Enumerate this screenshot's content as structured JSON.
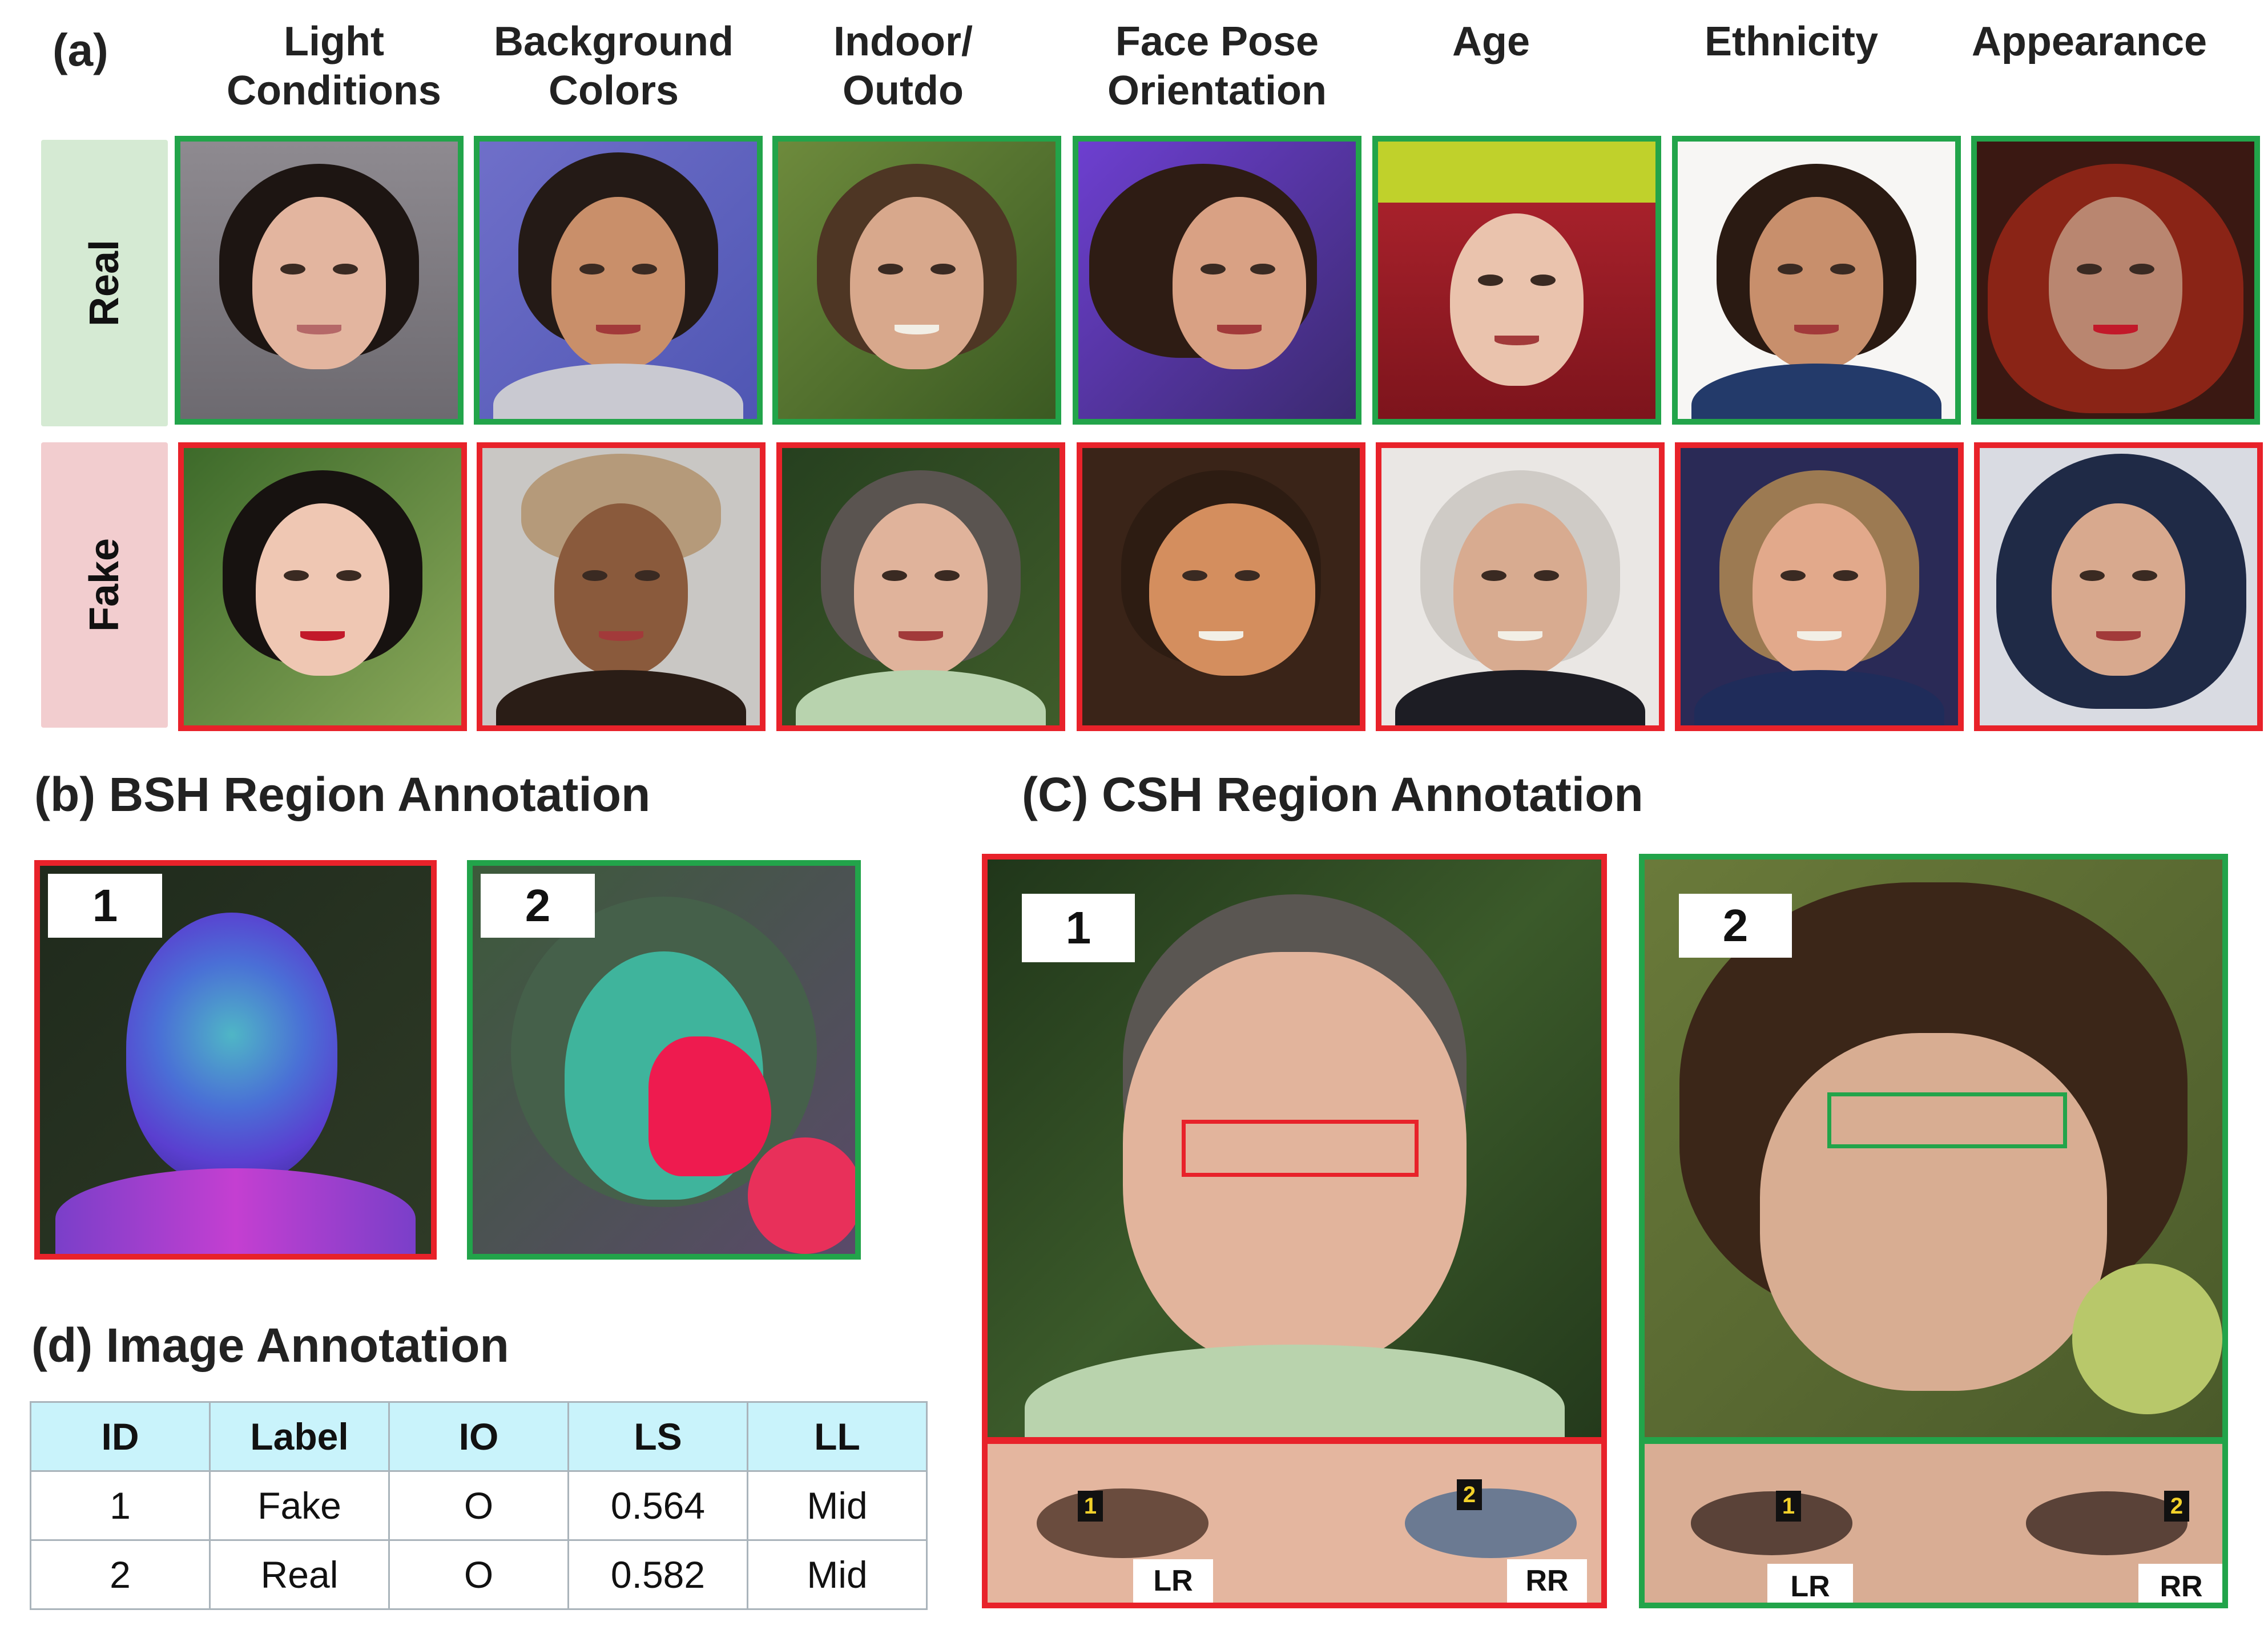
{
  "panel_a": {
    "label": "(a)",
    "columns": [
      {
        "line1": "Light",
        "line2": "Conditions"
      },
      {
        "line1": "Background",
        "line2": "Colors"
      },
      {
        "line1": "Indoor/",
        "line2": "Outdo"
      },
      {
        "line1": "Face Pose",
        "line2": "Orientation"
      },
      {
        "line1": "Age",
        "line2": ""
      },
      {
        "line1": "Ethnicity",
        "line2": ""
      },
      {
        "line1": "Appearance",
        "line2": ""
      }
    ],
    "rows": {
      "real": "Real",
      "fake": "Fake"
    },
    "colors": {
      "real_border": "#22a44a",
      "fake_border": "#e8222a",
      "real_label_bg": "#d5ead3",
      "fake_label_bg": "#f2cdcf"
    }
  },
  "panel_b": {
    "title": "(b) BSH Region Annotation",
    "items": [
      {
        "number": "1",
        "status": "fake"
      },
      {
        "number": "2",
        "status": "real"
      }
    ]
  },
  "panel_c": {
    "title": "(C) CSH Region Annotation",
    "items": [
      {
        "number": "1",
        "status": "fake",
        "left_region": "LR",
        "right_region": "RR",
        "left_marker": "1",
        "right_marker": "2"
      },
      {
        "number": "2",
        "status": "real",
        "left_region": "LR",
        "right_region": "RR",
        "left_marker": "1",
        "right_marker": "2"
      }
    ]
  },
  "panel_d": {
    "title": "(d) Image Annotation",
    "table": {
      "headers": [
        "ID",
        "Label",
        "IO",
        "LS",
        "LL"
      ],
      "rows": [
        [
          "1",
          "Fake",
          "O",
          "0.564",
          "Mid"
        ],
        [
          "2",
          "Real",
          "O",
          "0.582",
          "Mid"
        ]
      ],
      "header_bg": "#c9f3fb"
    }
  }
}
